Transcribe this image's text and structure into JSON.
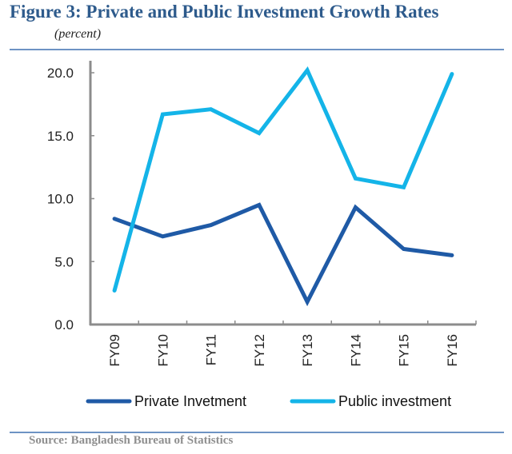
{
  "figure": {
    "title": "Figure 3:  Private and Public Investment Growth Rates",
    "subtitle": "(percent)",
    "source": "Source: Bangladesh Bureau of Statistics"
  },
  "chart_data": {
    "type": "line",
    "title": "Figure 3: Private and Public Investment Growth Rates",
    "ylabel": "(percent)",
    "xlabel": "",
    "categories": [
      "FY09",
      "FY10",
      "FY11",
      "FY12",
      "FY13",
      "FY14",
      "FY15",
      "FY16"
    ],
    "ylim": [
      0,
      20
    ],
    "yticks": [
      0,
      5,
      10,
      15,
      20
    ],
    "ytick_labels": [
      "0.0",
      "5.0",
      "10.0",
      "15.0",
      "20.0"
    ],
    "grid": false,
    "legend_position": "bottom",
    "series": [
      {
        "name": "Private Invetment",
        "color": "#1f5aa6",
        "values": [
          8.4,
          7.0,
          7.9,
          9.5,
          1.8,
          9.3,
          6.0,
          5.5
        ]
      },
      {
        "name": "Public investment",
        "color": "#14b4e8",
        "values": [
          2.7,
          16.7,
          17.1,
          15.2,
          20.2,
          11.6,
          10.9,
          19.9
        ]
      }
    ]
  }
}
